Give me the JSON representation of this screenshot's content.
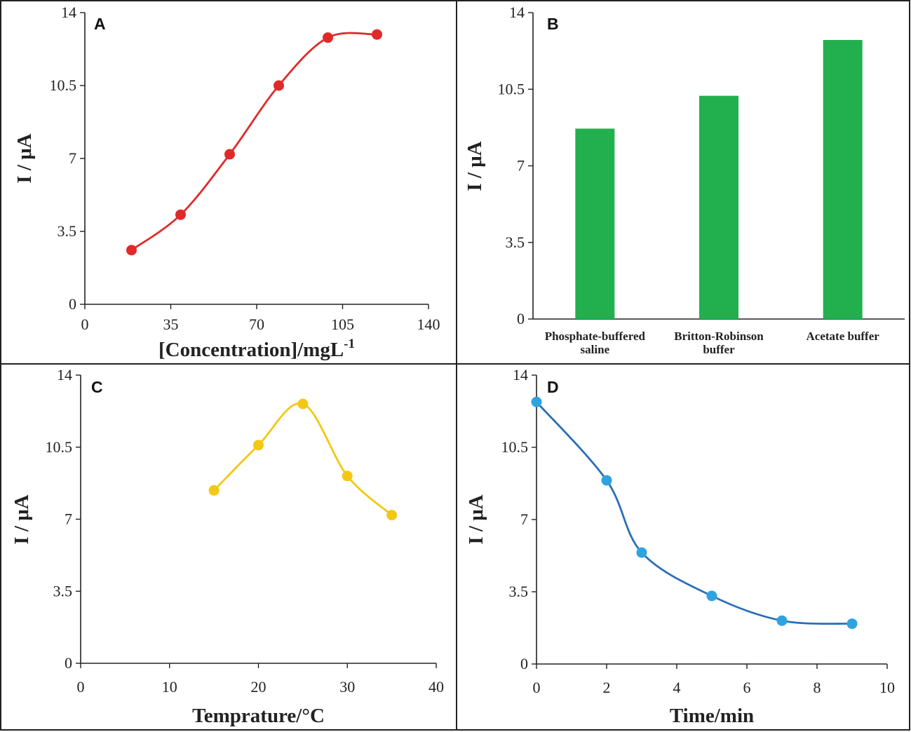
{
  "chart_data": [
    {
      "panel": "A",
      "type": "line",
      "xlabel": "[Concentration]/mgL",
      "xlabel_sup": "-1",
      "ylabel": "I / μA",
      "xlim": [
        0,
        140
      ],
      "ylim": [
        0,
        14
      ],
      "xticks": [
        "0",
        "35",
        "70",
        "105",
        "140"
      ],
      "yticks": [
        "0",
        "3.5",
        "7",
        "10.5",
        "14"
      ],
      "color": "#e02a2a",
      "series": [
        {
          "name": "I",
          "x": [
            19,
            39,
            59,
            79,
            99,
            119
          ],
          "y": [
            2.6,
            4.3,
            7.2,
            10.5,
            12.8,
            12.95
          ]
        }
      ]
    },
    {
      "panel": "B",
      "type": "bar",
      "xlabel": "",
      "ylabel": "I / μA",
      "ylim": [
        0,
        14
      ],
      "yticks": [
        "0",
        "3.5",
        "7",
        "10.5",
        "14"
      ],
      "color": "#22b04f",
      "categories": [
        [
          "Phosphate-buffered",
          "saline"
        ],
        [
          "Britton-Robinson",
          "buffer"
        ],
        [
          "Acetate buffer"
        ]
      ],
      "values": [
        8.7,
        10.2,
        12.75
      ]
    },
    {
      "panel": "C",
      "type": "line",
      "xlabel": "Temprature/°C",
      "ylabel": "I / μA",
      "xlim": [
        0,
        40
      ],
      "ylim": [
        0,
        14
      ],
      "xticks": [
        "0",
        "10",
        "20",
        "30",
        "40"
      ],
      "yticks": [
        "0",
        "3.5",
        "7",
        "10.5",
        "14"
      ],
      "color": "#f2c814",
      "series": [
        {
          "name": "I",
          "x": [
            15,
            20,
            25,
            30,
            35
          ],
          "y": [
            8.4,
            10.6,
            12.6,
            9.1,
            7.2
          ]
        }
      ]
    },
    {
      "panel": "D",
      "type": "line",
      "xlabel": "Time/min",
      "ylabel": "I / μA",
      "xlim": [
        0,
        10
      ],
      "ylim": [
        0,
        14
      ],
      "xticks": [
        "0",
        "2",
        "4",
        "6",
        "8",
        "10"
      ],
      "yticks": [
        "0",
        "3.5",
        "7",
        "10.5",
        "14"
      ],
      "color": "#2a6fb8",
      "marker_color": "#2ea3e0",
      "series": [
        {
          "name": "I",
          "x": [
            0,
            2,
            3,
            5,
            7,
            9
          ],
          "y": [
            12.7,
            8.9,
            5.4,
            3.3,
            2.1,
            1.95
          ]
        }
      ]
    }
  ]
}
